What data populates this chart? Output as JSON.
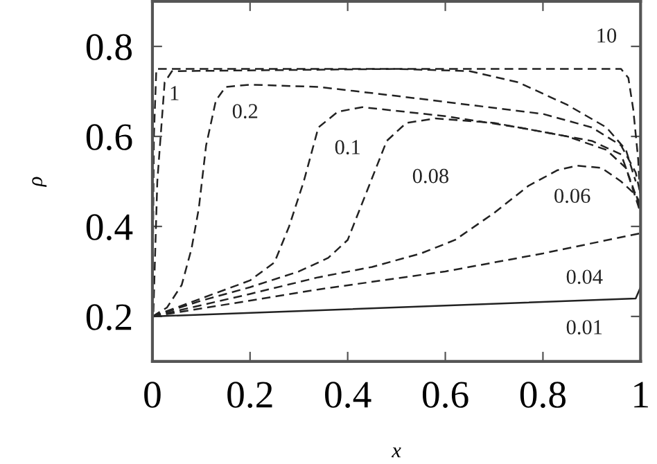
{
  "chart_data": {
    "type": "line",
    "xlabel": "x",
    "ylabel": "ρ",
    "xlim": [
      0,
      1
    ],
    "ylim": [
      0.1,
      0.9
    ],
    "xticks": [
      0,
      0.2,
      0.4,
      0.6,
      0.8,
      1
    ],
    "yticks": [
      0.2,
      0.4,
      0.6,
      0.8
    ],
    "grid": false,
    "legend": false,
    "marker": "none",
    "series": [
      {
        "name": "10",
        "color": "#222222",
        "line_style": "dashed",
        "x": [
          0,
          0.003,
          0.008,
          0.5,
          0.96,
          0.975,
          0.985,
          0.995,
          1
        ],
        "values": [
          0.2,
          0.6,
          0.75,
          0.75,
          0.75,
          0.73,
          0.66,
          0.55,
          0.45
        ]
      },
      {
        "name": "1",
        "color": "#222222",
        "line_style": "dashed",
        "x": [
          0.002,
          0.01,
          0.025,
          0.04,
          0.5,
          0.65,
          0.75,
          0.85,
          0.93,
          0.97,
          0.99
        ],
        "values": [
          0.21,
          0.5,
          0.72,
          0.745,
          0.75,
          0.745,
          0.72,
          0.67,
          0.62,
          0.57,
          0.5
        ]
      },
      {
        "name": "0.2",
        "color": "#222222",
        "line_style": "dashed",
        "x": [
          0,
          0.03,
          0.06,
          0.08,
          0.095,
          0.11,
          0.13,
          0.15,
          0.2,
          0.34,
          0.5,
          0.8,
          0.9,
          0.96,
          0.99,
          1
        ],
        "values": [
          0.2,
          0.22,
          0.27,
          0.35,
          0.44,
          0.58,
          0.68,
          0.71,
          0.715,
          0.71,
          0.69,
          0.65,
          0.62,
          0.58,
          0.52,
          0.47
        ]
      },
      {
        "name": "0.1",
        "color": "#222222",
        "line_style": "dashed",
        "x": [
          0,
          0.1,
          0.2,
          0.25,
          0.28,
          0.31,
          0.34,
          0.38,
          0.43,
          0.6,
          0.75,
          0.9,
          0.96,
          1
        ],
        "values": [
          0.2,
          0.24,
          0.28,
          0.32,
          0.4,
          0.5,
          0.62,
          0.655,
          0.665,
          0.645,
          0.62,
          0.59,
          0.56,
          0.44
        ]
      },
      {
        "name": "0.08",
        "color": "#222222",
        "line_style": "dashed",
        "x": [
          0,
          0.1,
          0.2,
          0.3,
          0.36,
          0.4,
          0.44,
          0.48,
          0.52,
          0.58,
          0.7,
          0.85,
          0.93,
          0.97,
          1
        ],
        "values": [
          0.2,
          0.235,
          0.265,
          0.3,
          0.33,
          0.37,
          0.48,
          0.59,
          0.63,
          0.64,
          0.63,
          0.6,
          0.57,
          0.53,
          0.43
        ]
      },
      {
        "name": "0.06",
        "color": "#222222",
        "line_style": "dashed",
        "x": [
          0,
          0.1,
          0.2,
          0.34,
          0.45,
          0.55,
          0.62,
          0.7,
          0.77,
          0.83,
          0.87,
          0.92,
          0.96,
          0.99,
          1
        ],
        "values": [
          0.2,
          0.225,
          0.25,
          0.287,
          0.31,
          0.34,
          0.37,
          0.43,
          0.49,
          0.525,
          0.535,
          0.53,
          0.5,
          0.47,
          0.45
        ]
      },
      {
        "name": "0.04",
        "color": "#222222",
        "line_style": "dashed",
        "x": [
          0,
          0.34,
          0.6,
          0.8,
          1
        ],
        "values": [
          0.2,
          0.26,
          0.3,
          0.34,
          0.385
        ]
      },
      {
        "name": "0.01",
        "color": "#222222",
        "line_style": "solid",
        "x": [
          0,
          0.99,
          1
        ],
        "values": [
          0.2,
          0.24,
          0.265
        ]
      }
    ]
  }
}
